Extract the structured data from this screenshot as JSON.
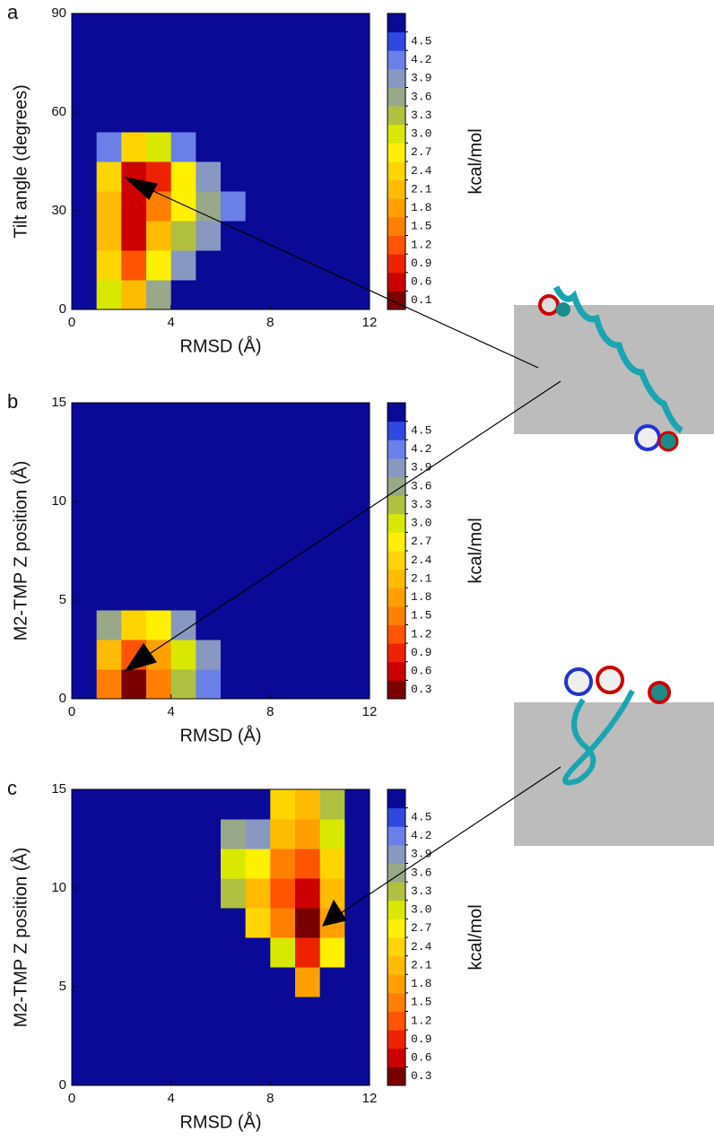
{
  "chart_data": [
    {
      "type": "contour",
      "panel": "a",
      "xlabel": "RMSD (Å)",
      "ylabel": "Tilt angle (degrees)",
      "colorbar_label": "kcal/mol",
      "xlim": [
        0,
        12
      ],
      "xticks": [
        0,
        4,
        8,
        12
      ],
      "ylim": [
        0,
        90
      ],
      "yticks": [
        0,
        30,
        60,
        90
      ],
      "colorbar_ticks": [
        0.1,
        0.6,
        0.9,
        1.2,
        1.5,
        1.8,
        2.1,
        2.4,
        2.7,
        {
          "value": 3,
          "label": "3.0"
        },
        3.3,
        3.6,
        3.9,
        4.2,
        4.5
      ],
      "colorbar_colors": [
        "#7a0000",
        "#cc0000",
        "#ee2200",
        "#ff5500",
        "#ff7f00",
        "#ffa000",
        "#ffbb00",
        "#ffd500",
        "#fff000",
        "#d8e800",
        "#b0c040",
        "#98a888",
        "#8898c0",
        "#6a80e8",
        "#3048e0",
        "#0a0a96"
      ],
      "z": [
        [
          4.8,
          3.0,
          2.0,
          3.5,
          4.8,
          4.8,
          4.8,
          4.8,
          4.8,
          4.8,
          4.8,
          4.8
        ],
        [
          4.8,
          2.4,
          1.2,
          2.7,
          3.9,
          4.8,
          4.8,
          4.8,
          4.8,
          4.8,
          4.8,
          4.8
        ],
        [
          4.8,
          2.1,
          0.6,
          2.1,
          3.3,
          3.9,
          4.8,
          4.8,
          4.8,
          4.8,
          4.8,
          4.8
        ],
        [
          4.8,
          2.1,
          0.3,
          1.5,
          2.7,
          3.6,
          4.2,
          4.8,
          4.8,
          4.8,
          4.8,
          4.8
        ],
        [
          4.8,
          2.4,
          0.3,
          0.9,
          2.7,
          3.9,
          4.8,
          4.8,
          4.8,
          4.8,
          4.8,
          4.8
        ],
        [
          4.8,
          4.2,
          2.4,
          3.0,
          4.2,
          4.8,
          4.8,
          4.8,
          4.8,
          4.8,
          4.8,
          4.8
        ],
        [
          4.8,
          4.8,
          4.8,
          4.8,
          4.8,
          4.8,
          4.8,
          4.8,
          4.8,
          4.8,
          4.8,
          4.8
        ],
        [
          4.8,
          4.8,
          4.8,
          4.8,
          4.8,
          4.8,
          4.8,
          4.8,
          4.8,
          4.8,
          4.8,
          4.8
        ],
        [
          4.8,
          4.8,
          4.8,
          4.8,
          4.8,
          4.8,
          4.8,
          4.8,
          4.8,
          4.8,
          4.8,
          4.8
        ],
        [
          4.8,
          4.8,
          4.8,
          4.8,
          4.8,
          4.8,
          4.8,
          4.8,
          4.8,
          4.8,
          4.8,
          4.8
        ]
      ]
    },
    {
      "type": "contour",
      "panel": "b",
      "xlabel": "RMSD (Å)",
      "ylabel": "M2-TMP Z position (Å)",
      "colorbar_label": "kcal/mol",
      "xlim": [
        0,
        12
      ],
      "xticks": [
        0,
        4,
        8,
        12
      ],
      "ylim": [
        0,
        15
      ],
      "yticks": [
        0,
        5,
        10,
        15
      ],
      "colorbar_ticks": [
        0.3,
        0.6,
        0.9,
        1.2,
        1.5,
        1.8,
        2.1,
        2.4,
        2.7,
        {
          "value": 3,
          "label": "3.0"
        },
        3.3,
        3.6,
        3.9,
        4.2,
        4.5
      ],
      "colorbar_colors": [
        "#7a0000",
        "#cc0000",
        "#ee2200",
        "#ff5500",
        "#ff7f00",
        "#ffa000",
        "#ffbb00",
        "#ffd500",
        "#fff000",
        "#d8e800",
        "#b0c040",
        "#98a888",
        "#8898c0",
        "#6a80e8",
        "#3048e0",
        "#0a0a96"
      ],
      "z": [
        [
          4.8,
          1.5,
          0.3,
          1.5,
          3.3,
          4.2,
          4.8,
          4.8,
          4.8,
          4.8,
          4.8,
          4.8
        ],
        [
          4.8,
          2.1,
          1.2,
          1.8,
          3.0,
          3.9,
          4.8,
          4.8,
          4.8,
          4.8,
          4.8,
          4.8
        ],
        [
          4.8,
          3.6,
          2.4,
          2.7,
          3.9,
          4.8,
          4.8,
          4.8,
          4.8,
          4.8,
          4.8,
          4.8
        ],
        [
          4.8,
          4.8,
          4.8,
          4.8,
          4.8,
          4.8,
          4.8,
          4.8,
          4.8,
          4.8,
          4.8,
          4.8
        ],
        [
          4.8,
          4.8,
          4.8,
          4.8,
          4.8,
          4.8,
          4.8,
          4.8,
          4.8,
          4.8,
          4.8,
          4.8
        ],
        [
          4.8,
          4.8,
          4.8,
          4.8,
          4.8,
          4.8,
          4.8,
          4.8,
          4.8,
          4.8,
          4.8,
          4.8
        ],
        [
          4.8,
          4.8,
          4.8,
          4.8,
          4.8,
          4.8,
          4.8,
          4.8,
          4.8,
          4.8,
          4.8,
          4.8
        ],
        [
          4.8,
          4.8,
          4.8,
          4.8,
          4.8,
          4.8,
          4.8,
          4.8,
          4.8,
          4.8,
          4.8,
          4.8
        ],
        [
          4.8,
          4.8,
          4.8,
          4.8,
          4.8,
          4.8,
          4.8,
          4.8,
          4.8,
          4.8,
          4.8,
          4.8
        ],
        [
          4.8,
          4.8,
          4.8,
          4.8,
          4.8,
          4.8,
          4.8,
          4.8,
          4.8,
          4.8,
          4.8,
          4.8
        ]
      ]
    },
    {
      "type": "contour",
      "panel": "c",
      "xlabel": "RMSD (Å)",
      "ylabel": "M2-TMP Z position (Å)",
      "colorbar_label": "kcal/mol",
      "xlim": [
        0,
        12
      ],
      "xticks": [
        0,
        4,
        8,
        12
      ],
      "ylim": [
        0,
        15
      ],
      "yticks": [
        0,
        5,
        10,
        15
      ],
      "colorbar_ticks": [
        0.3,
        0.6,
        0.9,
        1.2,
        1.5,
        1.8,
        2.1,
        2.4,
        2.7,
        {
          "value": 3,
          "label": "3.0"
        },
        3.3,
        3.6,
        3.9,
        4.2,
        4.5
      ],
      "colorbar_colors": [
        "#7a0000",
        "#cc0000",
        "#ee2200",
        "#ff5500",
        "#ff7f00",
        "#ffa000",
        "#ffbb00",
        "#ffd500",
        "#fff000",
        "#d8e800",
        "#b0c040",
        "#98a888",
        "#8898c0",
        "#6a80e8",
        "#3048e0",
        "#0a0a96"
      ],
      "z": [
        [
          4.8,
          4.8,
          4.8,
          4.8,
          4.8,
          4.8,
          4.8,
          4.8,
          4.8,
          4.8,
          4.8,
          4.8
        ],
        [
          4.8,
          4.8,
          4.8,
          4.8,
          4.8,
          4.8,
          4.8,
          4.8,
          4.8,
          4.8,
          4.8,
          4.8
        ],
        [
          4.8,
          4.8,
          4.8,
          4.8,
          4.8,
          4.8,
          4.8,
          4.8,
          4.8,
          4.8,
          4.8,
          4.8
        ],
        [
          4.8,
          4.8,
          4.8,
          4.8,
          4.8,
          4.8,
          4.8,
          4.8,
          4.8,
          1.8,
          4.8,
          4.8
        ],
        [
          4.8,
          4.8,
          4.8,
          4.8,
          4.8,
          4.8,
          4.8,
          4.8,
          3.0,
          0.9,
          2.7,
          4.8
        ],
        [
          4.8,
          4.8,
          4.8,
          4.8,
          4.8,
          4.8,
          4.8,
          2.4,
          1.5,
          0.3,
          1.8,
          4.8
        ],
        [
          4.8,
          4.8,
          4.8,
          4.8,
          4.8,
          4.8,
          3.3,
          2.1,
          1.2,
          0.6,
          2.1,
          4.8
        ],
        [
          4.8,
          4.8,
          4.8,
          4.8,
          4.8,
          4.8,
          3.0,
          2.7,
          1.5,
          1.2,
          2.4,
          4.8
        ],
        [
          4.8,
          4.8,
          4.8,
          4.8,
          4.8,
          4.8,
          3.6,
          3.9,
          2.1,
          1.8,
          3.0,
          4.8
        ],
        [
          4.8,
          4.8,
          4.8,
          4.8,
          4.8,
          4.8,
          4.8,
          4.8,
          2.4,
          2.1,
          3.3,
          4.8
        ]
      ]
    }
  ]
}
